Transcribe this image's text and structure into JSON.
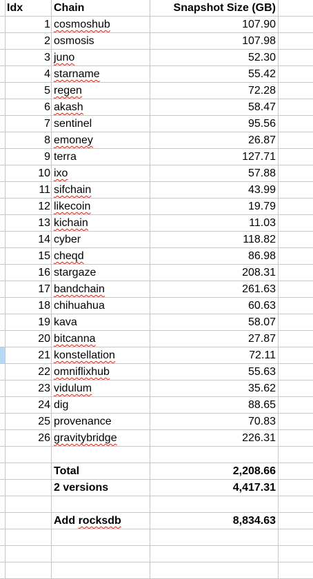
{
  "headers": {
    "idx": "Idx",
    "chain": "Chain",
    "size": "Snapshot Size (GB)"
  },
  "rows": [
    {
      "idx": "1",
      "chain": "cosmoshub",
      "size": "107.90"
    },
    {
      "idx": "2",
      "chain": "osmosis",
      "size": "107.98"
    },
    {
      "idx": "3",
      "chain": "juno",
      "size": "52.30"
    },
    {
      "idx": "4",
      "chain": "starname",
      "size": "55.42"
    },
    {
      "idx": "5",
      "chain": "regen",
      "size": "72.28"
    },
    {
      "idx": "6",
      "chain": "akash",
      "size": "58.47"
    },
    {
      "idx": "7",
      "chain": "sentinel",
      "size": "95.56"
    },
    {
      "idx": "8",
      "chain": "emoney",
      "size": "26.87"
    },
    {
      "idx": "9",
      "chain": "terra",
      "size": "127.71"
    },
    {
      "idx": "10",
      "chain": "ixo",
      "size": "57.88"
    },
    {
      "idx": "11",
      "chain": "sifchain",
      "size": "43.99"
    },
    {
      "idx": "12",
      "chain": "likecoin",
      "size": "19.79"
    },
    {
      "idx": "13",
      "chain": "kichain",
      "size": "11.03"
    },
    {
      "idx": "14",
      "chain": "cyber",
      "size": "118.82"
    },
    {
      "idx": "15",
      "chain": "cheqd",
      "size": "86.98"
    },
    {
      "idx": "16",
      "chain": "stargaze",
      "size": "208.31"
    },
    {
      "idx": "17",
      "chain": "bandchain",
      "size": "261.63"
    },
    {
      "idx": "18",
      "chain": "chihuahua",
      "size": "60.63"
    },
    {
      "idx": "19",
      "chain": "kava",
      "size": "58.07"
    },
    {
      "idx": "20",
      "chain": "bitcanna",
      "size": "27.87"
    },
    {
      "idx": "21",
      "chain": "konstellation",
      "size": "72.11"
    },
    {
      "idx": "22",
      "chain": "omniflixhub",
      "size": "55.63"
    },
    {
      "idx": "23",
      "chain": "vidulum",
      "size": "35.62"
    },
    {
      "idx": "24",
      "chain": "dig",
      "size": "88.65"
    },
    {
      "idx": "25",
      "chain": "provenance",
      "size": "70.83"
    },
    {
      "idx": "26",
      "chain": "gravitybridge",
      "size": "226.31"
    }
  ],
  "summary": [
    {
      "label": "Total",
      "value": "2,208.66"
    },
    {
      "label": "2 versions",
      "value": "4,417.31"
    },
    {
      "label": "Add rocksdb",
      "value": "8,834.63"
    }
  ]
}
